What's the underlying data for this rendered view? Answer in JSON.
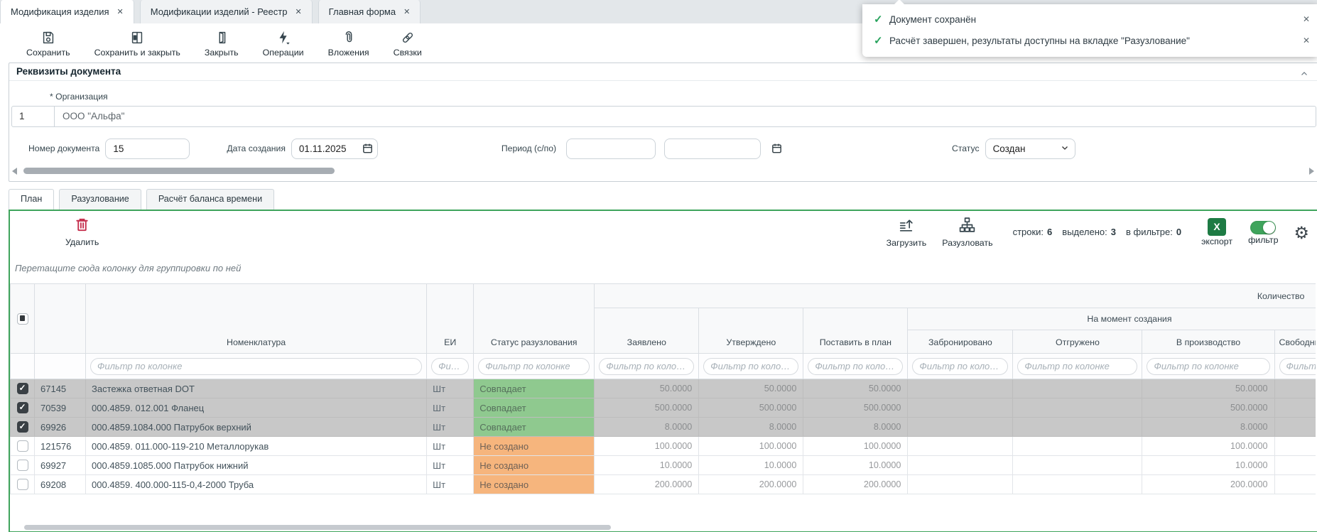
{
  "window_tabs": {
    "items": [
      {
        "label": "Модификация изделия",
        "active": true
      },
      {
        "label": "Модификации изделий - Реестр",
        "active": false
      },
      {
        "label": "Главная форма",
        "active": false
      }
    ],
    "close_glyph": "✕"
  },
  "toasts": {
    "items": [
      {
        "text": "Документ сохранён"
      },
      {
        "text": "Расчёт завершен, результаты доступны на вкладке \"Разузлование\""
      }
    ],
    "check_glyph": "✓",
    "close_glyph": "✕"
  },
  "toolbar": {
    "buttons": [
      "Сохранить",
      "Сохранить и закрыть",
      "Закрыть",
      "Операции",
      "Вложения",
      "Связки"
    ]
  },
  "requisites": {
    "title": "Реквизиты документа",
    "org_label": "* Организация",
    "org_code": "1",
    "org_name": "ООО \"Альфа\"",
    "doc_number_label": "Номер документа",
    "doc_number": "15",
    "created_label": "Дата создания",
    "created": "01.11.2025",
    "period_label": "Период (с/по)",
    "period_from": "",
    "period_to": "",
    "status_label": "Статус",
    "status": "Создан"
  },
  "view_tabs": {
    "items": [
      {
        "label": "План",
        "active": true
      },
      {
        "label": "Разузлование",
        "active": false
      },
      {
        "label": "Расчёт баланса времени",
        "active": false
      }
    ]
  },
  "grid": {
    "delete_label": "Удалить",
    "load_label": "Загрузить",
    "explode_label": "Разузловать",
    "counters": {
      "rows_label": "строки:",
      "rows": "6",
      "selected_label": "выделено:",
      "selected": "3",
      "filtered_label": "в фильтре:",
      "filtered": "0"
    },
    "export_label": "экспорт",
    "export_glyph": "X",
    "filter_label": "фильтр",
    "group_hint": "Перетащите сюда колонку для группировки по ней",
    "filter_placeholder": "Фильтр по колонке",
    "group_headers": {
      "quantity": "Количество",
      "at_creation": "На момент создания"
    },
    "columns": {
      "nomenclature": "Номенклатура",
      "unit": "ЕИ",
      "status": "Статус разузлования",
      "requested": "Заявлено",
      "approved": "Утверждено",
      "to_plan": "Поставить в план",
      "reserved": "Забронировано",
      "shipped": "Отгружено",
      "in_production": "В производство",
      "free": "Свободный остаток"
    },
    "status_colors": {
      "match": "#8fc98f",
      "missing": "#f6b57d"
    },
    "status_text_colors": {
      "match": "#56705c",
      "missing": "#6f6156"
    },
    "rows": [
      {
        "checked": true,
        "id": "67145",
        "name": "Застежка ответная DOT",
        "unit": "Шт",
        "status": "Совпадает",
        "status_kind": "match",
        "requested": "50.0000",
        "approved": "50.0000",
        "to_plan": "50.0000",
        "reserved": "",
        "shipped": "",
        "in_production": "50.0000",
        "free": ""
      },
      {
        "checked": true,
        "id": "70539",
        "name": "000.4859. 012.001 Фланец",
        "unit": "Шт",
        "status": "Совпадает",
        "status_kind": "match",
        "requested": "500.0000",
        "approved": "500.0000",
        "to_plan": "500.0000",
        "reserved": "",
        "shipped": "",
        "in_production": "500.0000",
        "free": ""
      },
      {
        "checked": true,
        "id": "69926",
        "name": "000.4859.1084.000 Патрубок верхний",
        "unit": "Шт",
        "status": "Совпадает",
        "status_kind": "match",
        "requested": "8.0000",
        "approved": "8.0000",
        "to_plan": "8.0000",
        "reserved": "",
        "shipped": "",
        "in_production": "8.0000",
        "free": ""
      },
      {
        "checked": false,
        "id": "121576",
        "name": "000.4859. 011.000-119-210 Металлорукав",
        "unit": "Шт",
        "status": "Не создано",
        "status_kind": "missing",
        "requested": "100.0000",
        "approved": "100.0000",
        "to_plan": "100.0000",
        "reserved": "",
        "shipped": "",
        "in_production": "100.0000",
        "free": ""
      },
      {
        "checked": false,
        "id": "69927",
        "name": "000.4859.1085.000 Патрубок нижний",
        "unit": "Шт",
        "status": "Не создано",
        "status_kind": "missing",
        "requested": "10.0000",
        "approved": "10.0000",
        "to_plan": "10.0000",
        "reserved": "",
        "shipped": "",
        "in_production": "10.0000",
        "free": ""
      },
      {
        "checked": false,
        "id": "69208",
        "name": "000.4859. 400.000-115-0,4-2000 Труба",
        "unit": "Шт",
        "status": "Не создано",
        "status_kind": "missing",
        "requested": "200.0000",
        "approved": "200.0000",
        "to_plan": "200.0000",
        "reserved": "",
        "shipped": "",
        "in_production": "200.0000",
        "free": ""
      }
    ],
    "accent_green": "#3fa45c",
    "export_green": "#1e7b44",
    "delete_red": "#c5304e"
  }
}
